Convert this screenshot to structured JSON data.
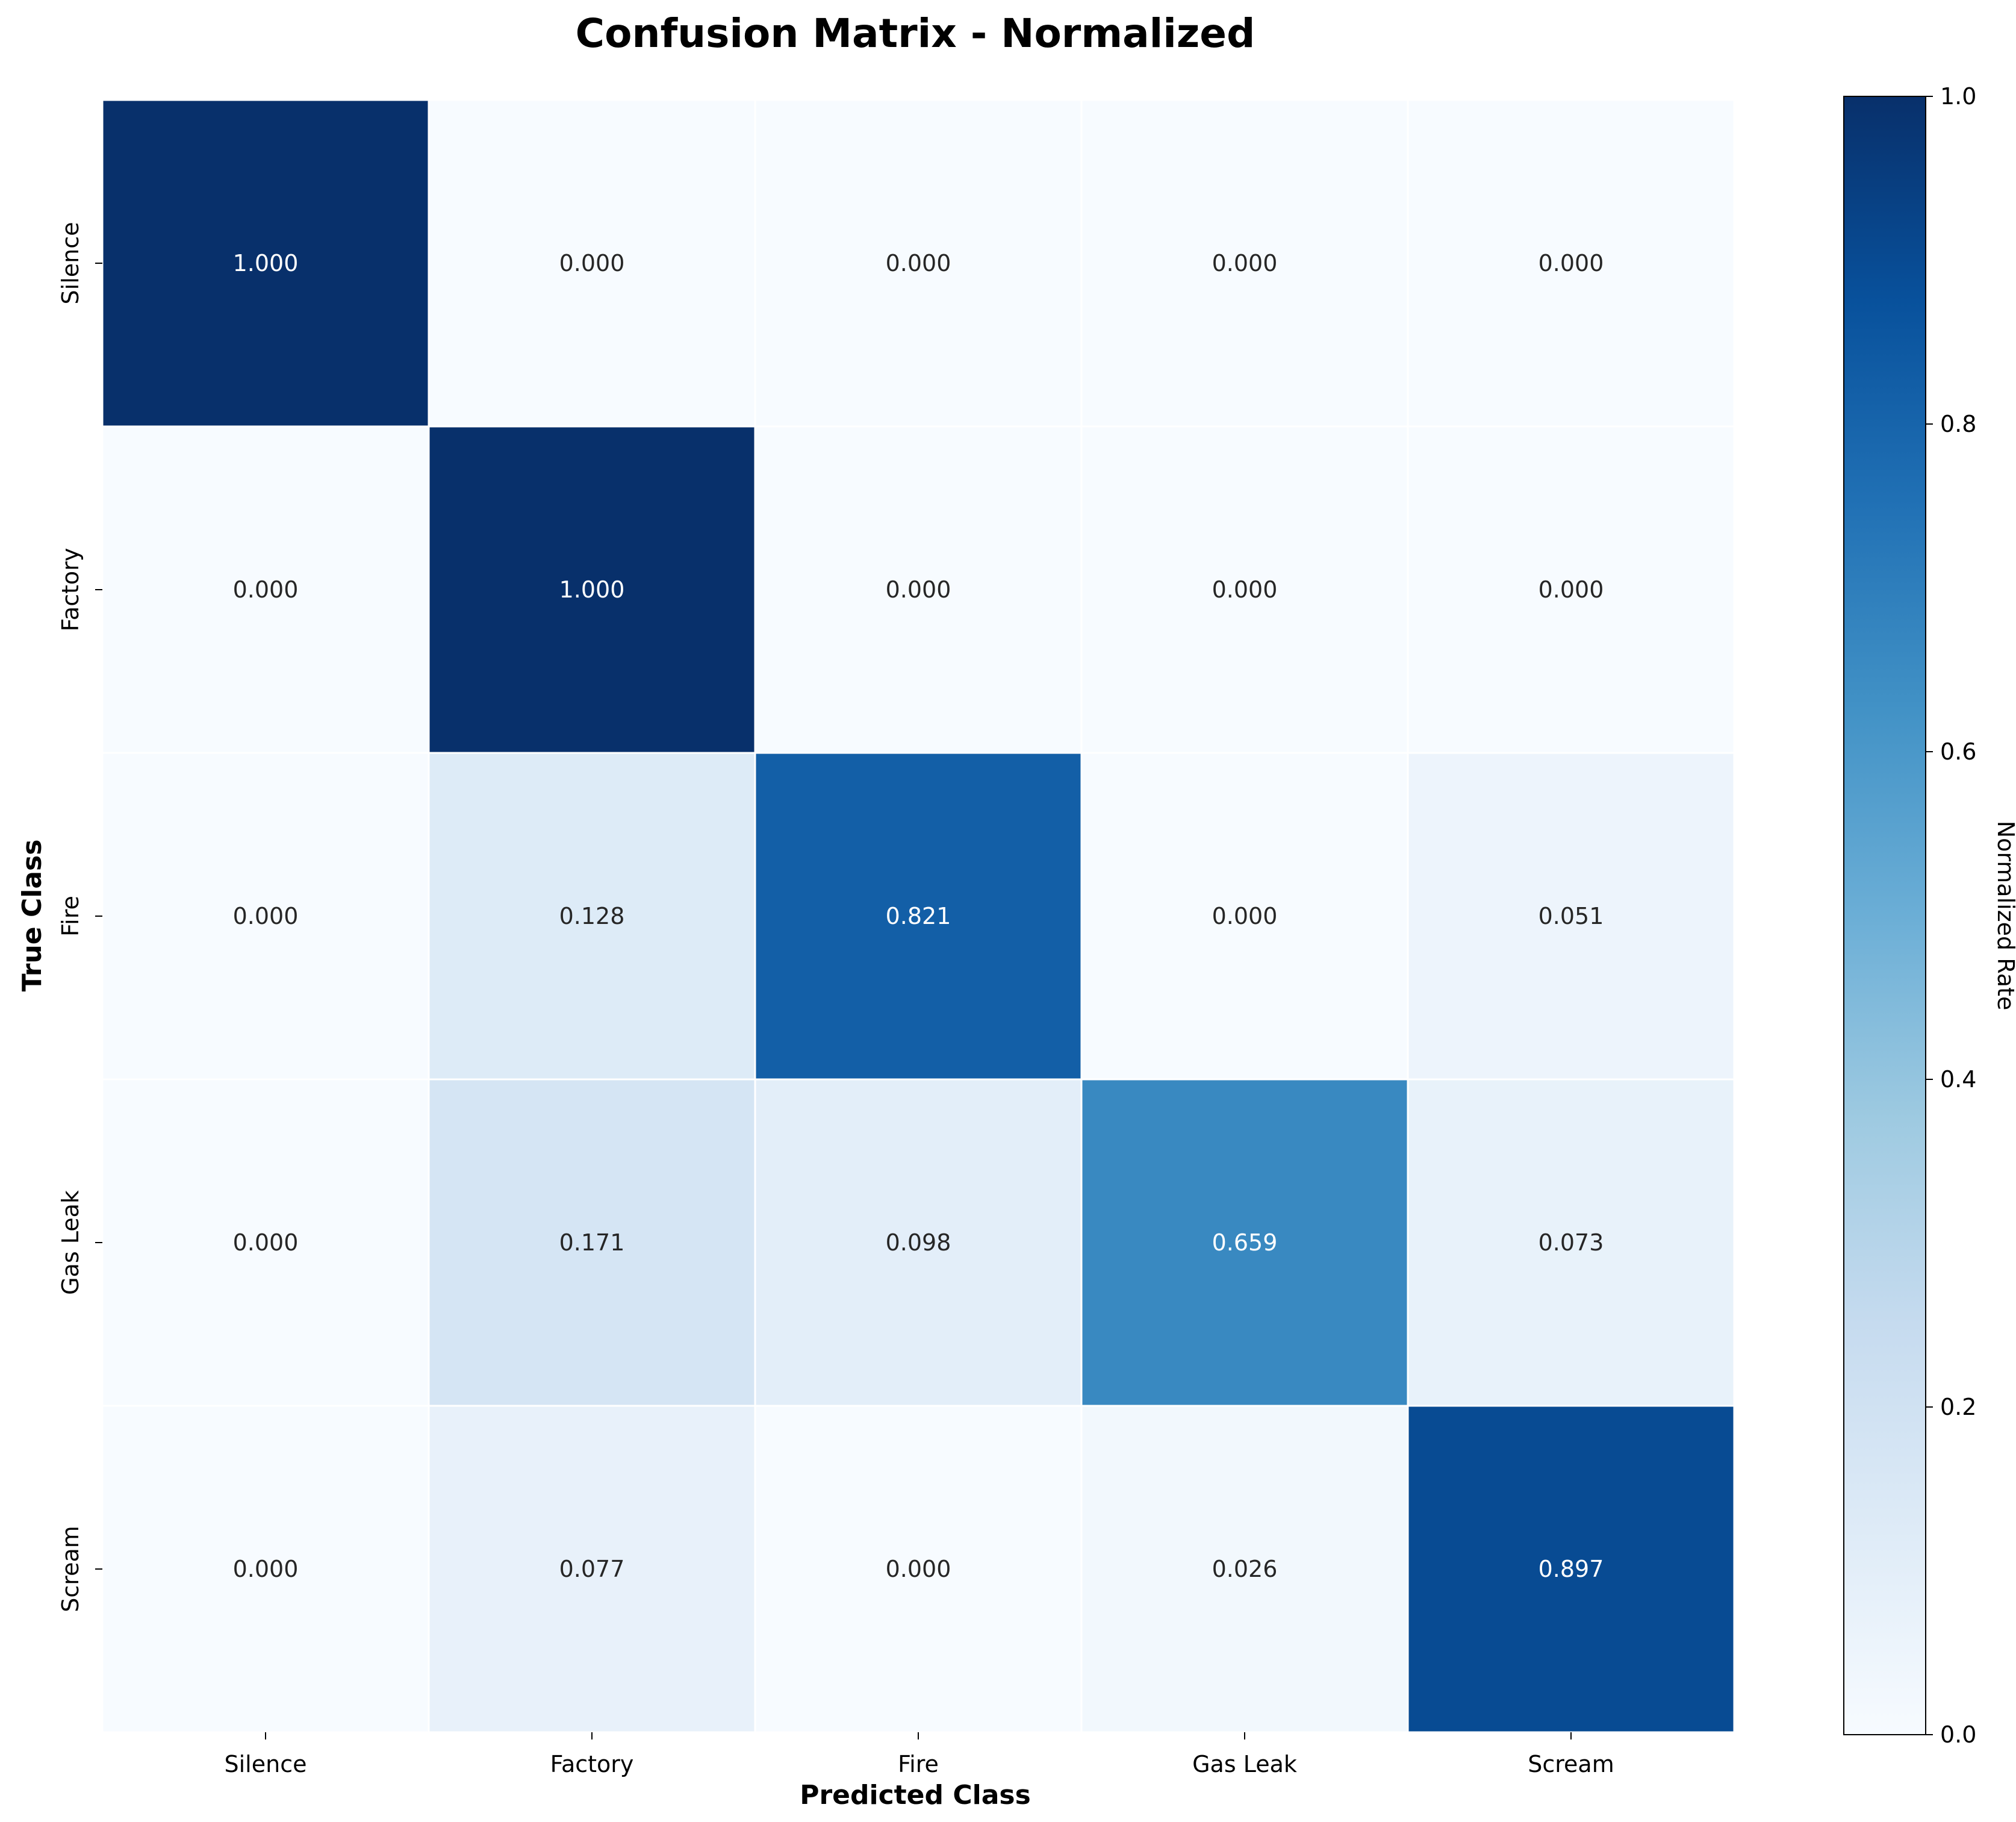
{
  "chart_data": {
    "type": "heatmap",
    "title": "Confusion Matrix - Normalized",
    "xlabel": "Predicted Class",
    "ylabel": "True Class",
    "x_categories": [
      "Silence",
      "Factory",
      "Fire",
      "Gas Leak",
      "Scream"
    ],
    "y_categories": [
      "Silence",
      "Factory",
      "Fire",
      "Gas Leak",
      "Scream"
    ],
    "values": [
      [
        1.0,
        0.0,
        0.0,
        0.0,
        0.0
      ],
      [
        0.0,
        1.0,
        0.0,
        0.0,
        0.0
      ],
      [
        0.0,
        0.128,
        0.821,
        0.0,
        0.051
      ],
      [
        0.0,
        0.171,
        0.098,
        0.659,
        0.073
      ],
      [
        0.0,
        0.077,
        0.0,
        0.026,
        0.897
      ]
    ],
    "value_format_decimals": 3,
    "colormap": "Blues",
    "vmin": 0.0,
    "vmax": 1.0,
    "colorbar": {
      "label": "Normalized Rate",
      "ticks": [
        0.0,
        0.2,
        0.4,
        0.6,
        0.8,
        1.0
      ],
      "tick_labels": [
        "0.0",
        "0.2",
        "0.4",
        "0.6",
        "0.8",
        "1.0"
      ]
    }
  }
}
